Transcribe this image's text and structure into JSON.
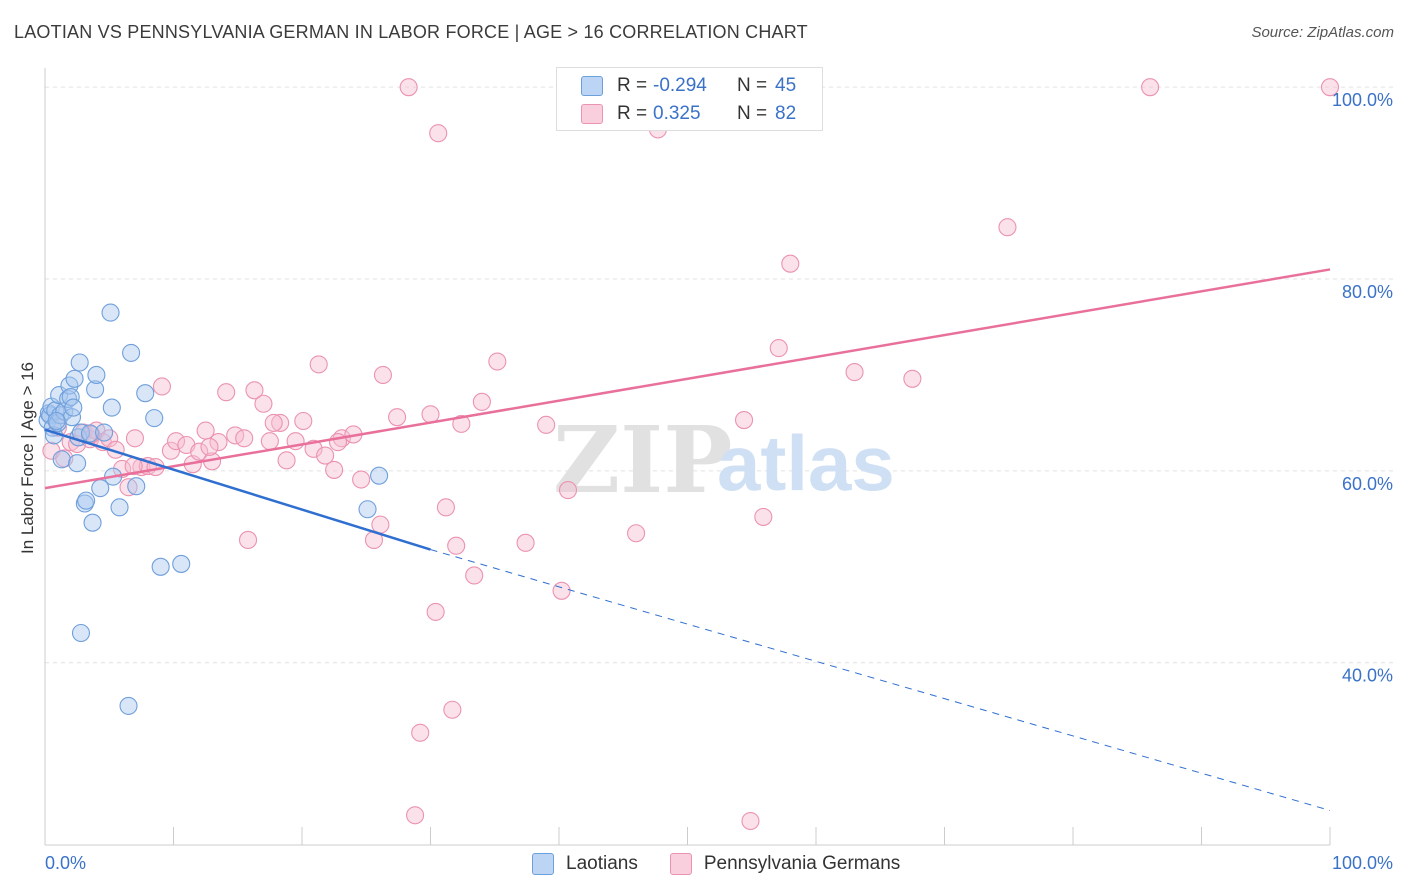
{
  "header": {
    "title": "LAOTIAN VS PENNSYLVANIA GERMAN IN LABOR FORCE | AGE > 16 CORRELATION CHART",
    "source": "Source: ZipAtlas.com"
  },
  "watermark": {
    "zip": "ZIP",
    "atlas": "atlas"
  },
  "legend": {
    "r_label": "R =",
    "n_label": "N =",
    "rows": [
      {
        "r": "-0.294",
        "n": "45",
        "swatch": "#a8c8f0"
      },
      {
        "r": "0.325",
        "n": "82",
        "swatch": "#f7bdd0"
      }
    ]
  },
  "bottom_legend": {
    "laotians": "Laotians",
    "pennsylvania_germans": "Pennsylvania Germans"
  },
  "colors": {
    "blue_fill": "rgba(168,200,240,0.45)",
    "blue_stroke": "#6f9fdb",
    "blue_line": "#2f6fd0",
    "pink_fill": "rgba(247,189,208,0.45)",
    "pink_stroke": "#eb93b1",
    "pink_line": "#e8709a",
    "axis_text": "#3a72c8",
    "grid": "#e2e2e2"
  },
  "chart_data": {
    "type": "scatter",
    "title": "LAOTIAN VS PENNSYLVANIA GERMAN IN LABOR FORCE | AGE > 16 CORRELATION CHART",
    "xlabel": "",
    "ylabel": "In Labor Force | Age > 16",
    "xlim": [
      0,
      100
    ],
    "ylim": [
      21,
      102
    ],
    "x_tick_labels": [
      "0.0%",
      "100.0%"
    ],
    "y_ticks": [
      40,
      60,
      80,
      100
    ],
    "y_tick_labels": [
      "40.0%",
      "60.0%",
      "80.0%",
      "100.0%"
    ],
    "grid": true,
    "legend_position": "top-center",
    "series": [
      {
        "name": "Laotians",
        "R": -0.294,
        "N": 45,
        "points": [
          [
            0.2,
            65.3
          ],
          [
            0.3,
            66.0
          ],
          [
            0.4,
            65.8
          ],
          [
            0.5,
            66.7
          ],
          [
            0.6,
            64.5
          ],
          [
            0.7,
            63.7
          ],
          [
            0.8,
            66.3
          ],
          [
            1.0,
            65.0
          ],
          [
            1.1,
            67.9
          ],
          [
            1.2,
            65.8
          ],
          [
            1.3,
            61.2
          ],
          [
            1.5,
            66.2
          ],
          [
            1.8,
            67.5
          ],
          [
            1.9,
            68.9
          ],
          [
            2.0,
            67.7
          ],
          [
            2.1,
            65.6
          ],
          [
            2.2,
            66.6
          ],
          [
            2.3,
            69.6
          ],
          [
            2.5,
            60.8
          ],
          [
            2.6,
            63.5
          ],
          [
            2.7,
            71.3
          ],
          [
            2.8,
            64.0
          ],
          [
            2.8,
            43.1
          ],
          [
            3.1,
            56.6
          ],
          [
            3.2,
            56.9
          ],
          [
            3.5,
            63.9
          ],
          [
            3.7,
            54.6
          ],
          [
            3.9,
            68.5
          ],
          [
            4.0,
            70.0
          ],
          [
            4.3,
            58.2
          ],
          [
            4.6,
            64.0
          ],
          [
            5.1,
            76.5
          ],
          [
            5.2,
            66.6
          ],
          [
            5.3,
            59.4
          ],
          [
            5.8,
            56.2
          ],
          [
            6.5,
            35.5
          ],
          [
            6.7,
            72.3
          ],
          [
            7.1,
            58.4
          ],
          [
            7.8,
            68.1
          ],
          [
            8.5,
            65.5
          ],
          [
            9.0,
            50.0
          ],
          [
            10.6,
            50.3
          ],
          [
            25.1,
            56.0
          ],
          [
            26.0,
            59.5
          ],
          [
            0.9,
            65.2
          ]
        ],
        "trend": {
          "x0": 0,
          "y0": 64.3,
          "x1": 30,
          "y1": 51.8,
          "dash_x1": 100,
          "dash_y1": 24.6
        }
      },
      {
        "name": "Pennsylvania Germans",
        "R": 0.325,
        "N": 82,
        "points": [
          [
            0.5,
            62.1
          ],
          [
            1.0,
            64.5
          ],
          [
            1.5,
            61.3
          ],
          [
            2.0,
            63.0
          ],
          [
            2.5,
            62.8
          ],
          [
            3.0,
            64.0
          ],
          [
            3.5,
            63.3
          ],
          [
            4.0,
            64.2
          ],
          [
            4.5,
            63.0
          ],
          [
            5.0,
            63.4
          ],
          [
            5.5,
            62.2
          ],
          [
            6.0,
            60.2
          ],
          [
            6.5,
            58.3
          ],
          [
            7.0,
            63.4
          ],
          [
            7.5,
            60.4
          ],
          [
            8.0,
            60.5
          ],
          [
            8.6,
            60.4
          ],
          [
            9.1,
            68.8
          ],
          [
            9.8,
            62.1
          ],
          [
            10.2,
            63.1
          ],
          [
            11.0,
            62.7
          ],
          [
            11.5,
            60.7
          ],
          [
            12.0,
            62.0
          ],
          [
            12.5,
            64.2
          ],
          [
            13.0,
            61.0
          ],
          [
            13.5,
            63.0
          ],
          [
            14.1,
            68.2
          ],
          [
            14.8,
            63.7
          ],
          [
            15.5,
            63.4
          ],
          [
            15.8,
            52.8
          ],
          [
            16.3,
            68.4
          ],
          [
            17.0,
            67.0
          ],
          [
            17.5,
            63.1
          ],
          [
            18.3,
            65.0
          ],
          [
            18.8,
            61.1
          ],
          [
            19.5,
            63.1
          ],
          [
            20.1,
            65.2
          ],
          [
            20.9,
            62.3
          ],
          [
            21.3,
            71.1
          ],
          [
            21.8,
            61.6
          ],
          [
            22.5,
            60.1
          ],
          [
            23.1,
            63.4
          ],
          [
            24.0,
            63.8
          ],
          [
            24.6,
            59.1
          ],
          [
            25.6,
            52.8
          ],
          [
            26.1,
            54.4
          ],
          [
            26.3,
            70.0
          ],
          [
            27.4,
            65.6
          ],
          [
            28.3,
            100.0
          ],
          [
            28.8,
            24.1
          ],
          [
            29.2,
            32.7
          ],
          [
            30.0,
            65.9
          ],
          [
            30.4,
            45.3
          ],
          [
            30.6,
            95.2
          ],
          [
            31.2,
            56.2
          ],
          [
            31.7,
            35.1
          ],
          [
            32.0,
            52.2
          ],
          [
            32.4,
            64.9
          ],
          [
            33.4,
            49.1
          ],
          [
            34.0,
            67.2
          ],
          [
            35.2,
            71.4
          ],
          [
            37.4,
            52.5
          ],
          [
            39.0,
            64.8
          ],
          [
            40.2,
            47.5
          ],
          [
            40.7,
            58.0
          ],
          [
            46.0,
            53.5
          ],
          [
            47.7,
            95.6
          ],
          [
            54.4,
            65.3
          ],
          [
            54.9,
            23.5
          ],
          [
            55.9,
            55.2
          ],
          [
            57.1,
            72.8
          ],
          [
            58.0,
            81.6
          ],
          [
            63.0,
            70.3
          ],
          [
            67.5,
            69.6
          ],
          [
            74.9,
            85.4
          ],
          [
            86.0,
            100.0
          ],
          [
            100.0,
            100.0
          ],
          [
            3.6,
            63.8
          ],
          [
            6.9,
            60.5
          ],
          [
            12.8,
            62.5
          ],
          [
            17.8,
            65.0
          ],
          [
            22.8,
            63.0
          ]
        ],
        "trend": {
          "x0": 0,
          "y0": 58.2,
          "x1": 100,
          "y1": 81.0
        }
      }
    ]
  }
}
